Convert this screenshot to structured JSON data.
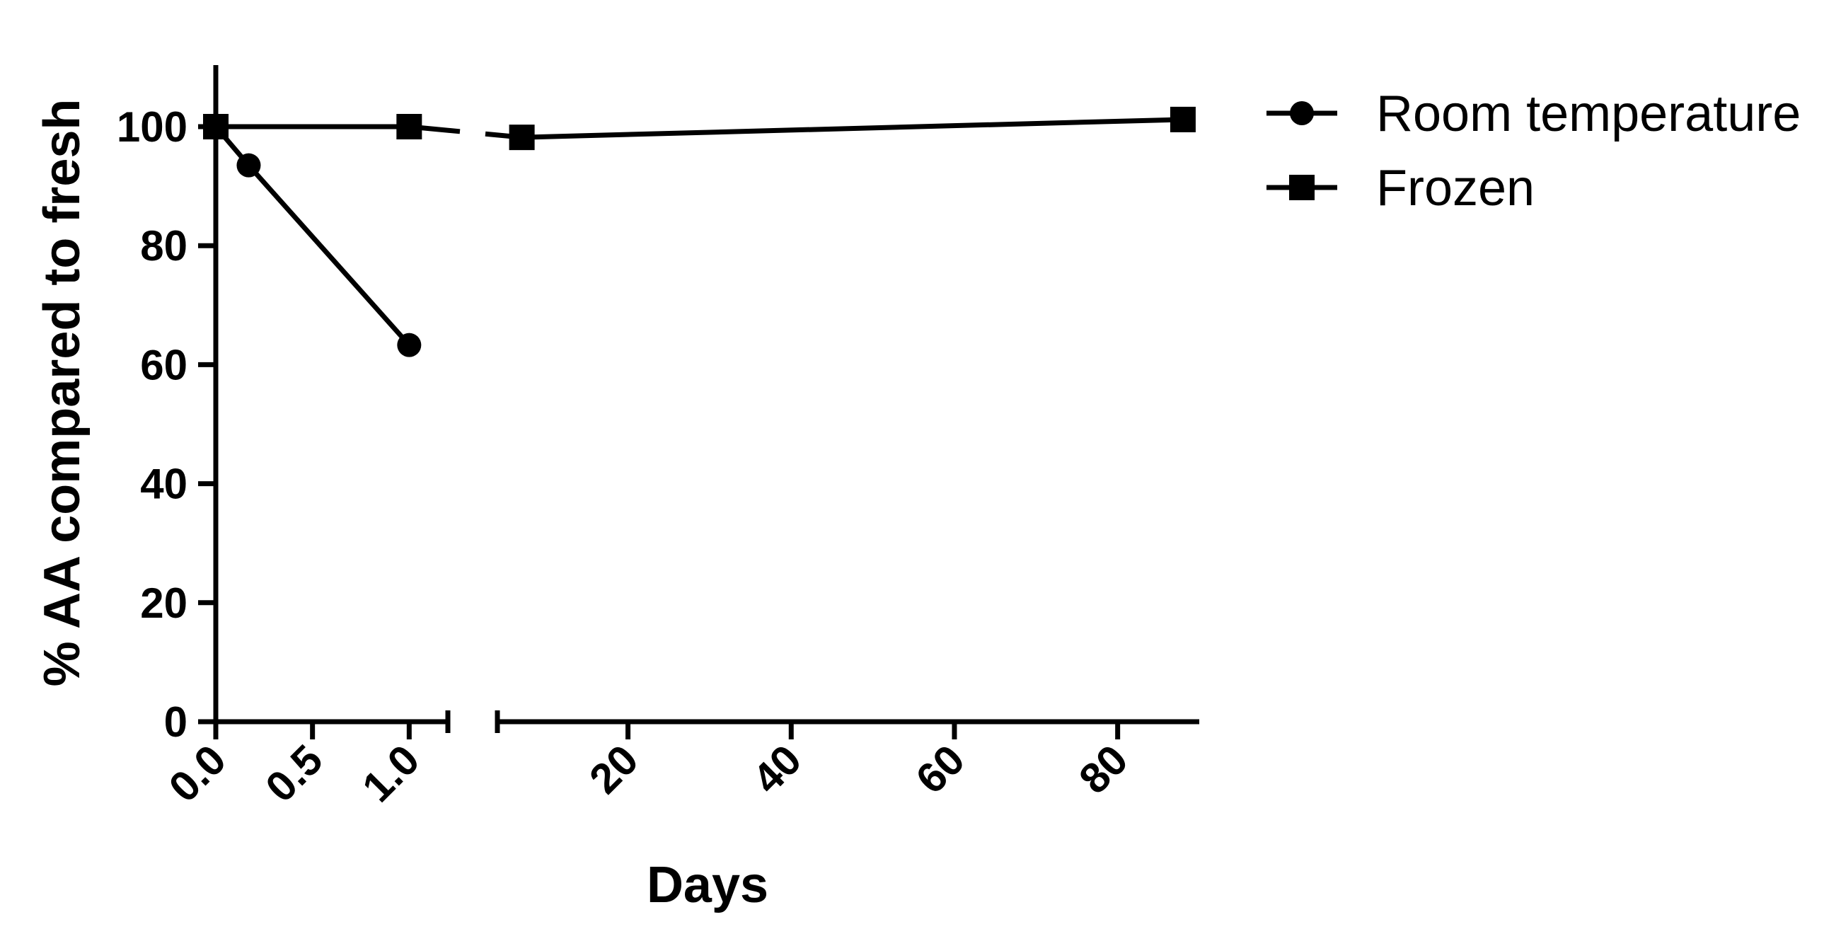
{
  "chart_data": {
    "type": "line",
    "title": "",
    "xlabel": "Days",
    "ylabel": "% AA compared to fresh",
    "x_axis": {
      "broken": true,
      "segments": [
        {
          "range": [
            0,
            1.2
          ],
          "ticks": [
            0.0,
            0.5,
            1.0
          ],
          "tick_labels": [
            "0.0",
            "0.5",
            "1.0"
          ]
        },
        {
          "range": [
            4,
            90
          ],
          "ticks": [
            20,
            40,
            60,
            80
          ],
          "tick_labels": [
            "20",
            "40",
            "60",
            "80"
          ]
        }
      ]
    },
    "y_axis": {
      "range": [
        0,
        110
      ],
      "ticks": [
        0,
        20,
        40,
        60,
        80,
        100
      ],
      "tick_labels": [
        "0",
        "20",
        "40",
        "60",
        "80",
        "100"
      ]
    },
    "grid": false,
    "legend_position": "top-right",
    "series": [
      {
        "name": "Room temperature",
        "marker": "circle",
        "x": [
          0,
          0.17,
          1
        ],
        "y": [
          100,
          93.5,
          63.3
        ]
      },
      {
        "name": "Frozen",
        "marker": "square",
        "x": [
          0,
          1,
          7,
          88
        ],
        "y": [
          100,
          100,
          98.2,
          101.2
        ]
      }
    ]
  }
}
